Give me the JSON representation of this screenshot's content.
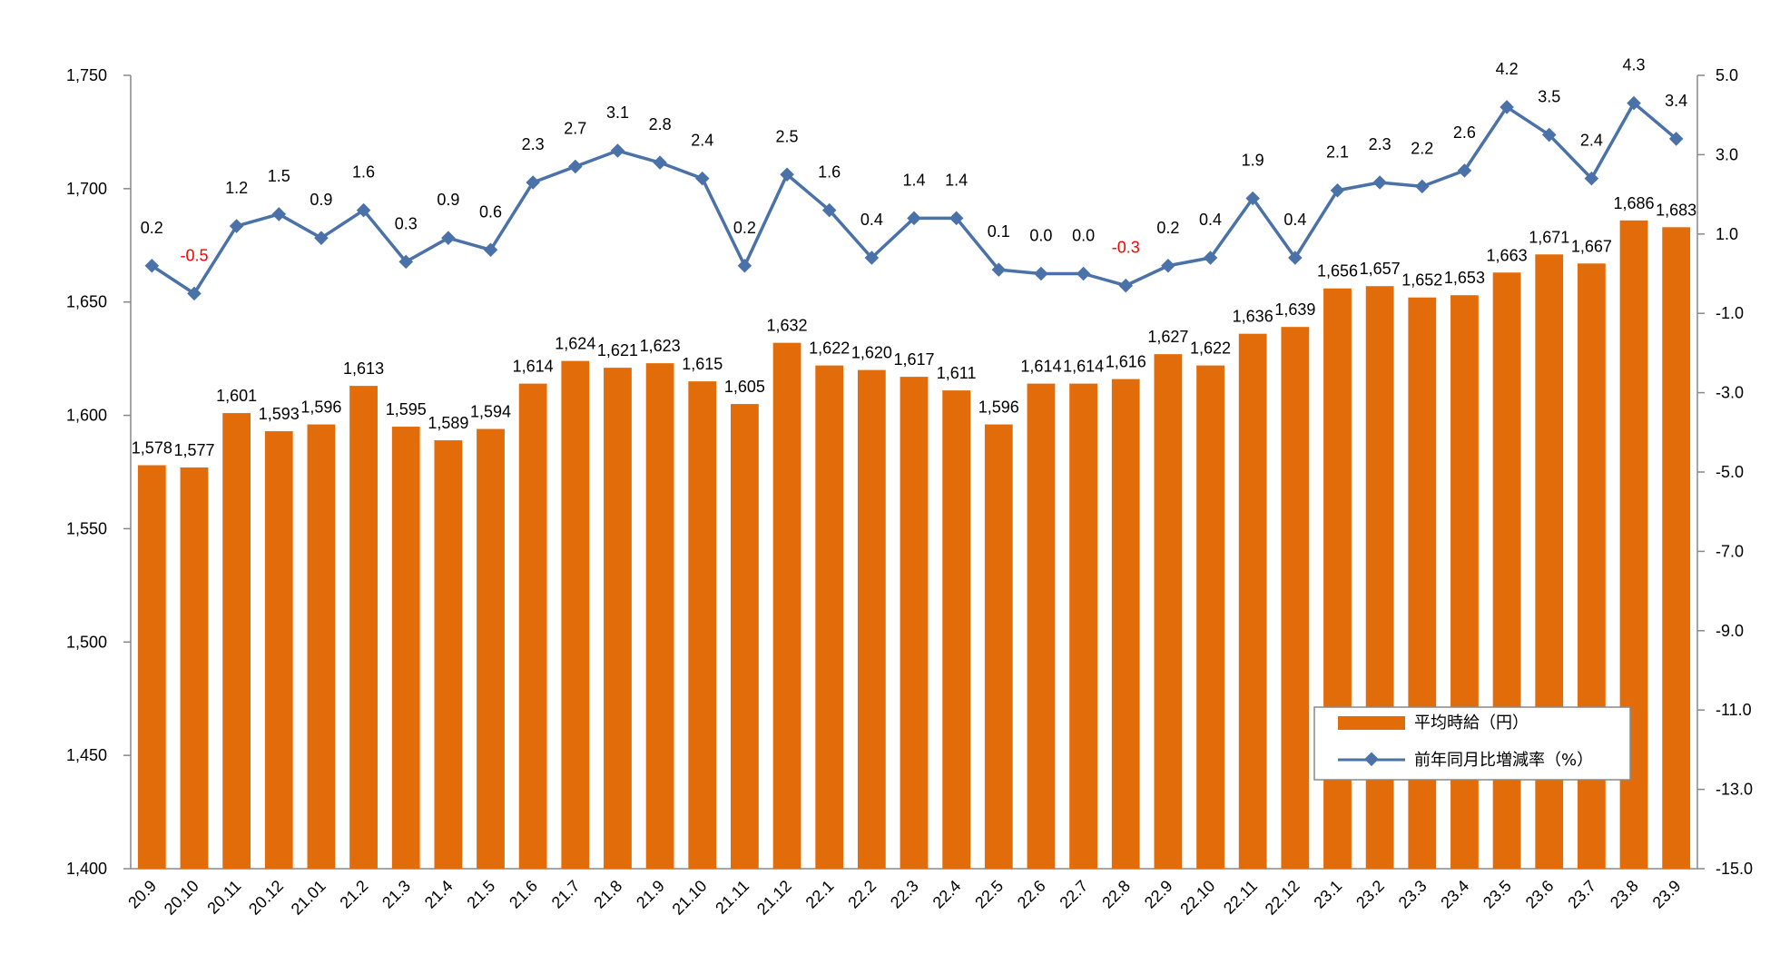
{
  "chart_data": {
    "type": "bar",
    "title": "",
    "categories": [
      "20.9",
      "20.10",
      "20.11",
      "20.12",
      "21.01",
      "21.2",
      "21.3",
      "21.4",
      "21.5",
      "21.6",
      "21.7",
      "21.8",
      "21.9",
      "21.10",
      "21.11",
      "21.12",
      "22.1",
      "22.2",
      "22.3",
      "22.4",
      "22.5",
      "22.6",
      "22.7",
      "22.8",
      "22.9",
      "22.10",
      "22.11",
      "22.12",
      "23.1",
      "23.2",
      "23.3",
      "23.4",
      "23.5",
      "23.6",
      "23.7",
      "23.8",
      "23.9"
    ],
    "series": [
      {
        "name": "平均時給（円）",
        "type": "bar",
        "axis": "left",
        "values": [
          1578,
          1577,
          1601,
          1593,
          1596,
          1613,
          1595,
          1589,
          1594,
          1614,
          1624,
          1621,
          1623,
          1615,
          1605,
          1632,
          1622,
          1620,
          1617,
          1611,
          1596,
          1614,
          1614,
          1616,
          1627,
          1622,
          1636,
          1639,
          1656,
          1657,
          1652,
          1653,
          1663,
          1671,
          1667,
          1686,
          1683
        ],
        "labels": [
          "1,578",
          "1,577",
          "1,601",
          "1,593",
          "1,596",
          "1,613",
          "1,595",
          "1,589",
          "1,594",
          "1,614",
          "1,624",
          "1,621",
          "1,623",
          "1,615",
          "1,605",
          "1,632",
          "1,622",
          "1,620",
          "1,617",
          "1,611",
          "1,596",
          "1,614",
          "1,614",
          "1,616",
          "1,627",
          "1,622",
          "1,636",
          "1,639",
          "1,656",
          "1,657",
          "1,652",
          "1,653",
          "1,663",
          "1,671",
          "1,667",
          "1,686",
          "1,683"
        ]
      },
      {
        "name": "前年同月比増減率（%）",
        "type": "line",
        "axis": "right",
        "values": [
          0.2,
          -0.5,
          1.2,
          1.5,
          0.9,
          1.6,
          0.3,
          0.9,
          0.6,
          2.3,
          2.7,
          3.1,
          2.8,
          2.4,
          0.2,
          2.5,
          1.6,
          0.4,
          1.4,
          1.4,
          0.1,
          0.0,
          0.0,
          -0.3,
          0.2,
          0.4,
          1.9,
          0.4,
          2.1,
          2.3,
          2.2,
          2.6,
          4.2,
          3.5,
          2.4,
          4.3,
          3.4
        ],
        "labels": [
          "0.2",
          "-0.5",
          "1.2",
          "1.5",
          "0.9",
          "1.6",
          "0.3",
          "0.9",
          "0.6",
          "2.3",
          "2.7",
          "3.1",
          "2.8",
          "2.4",
          "0.2",
          "2.5",
          "1.6",
          "0.4",
          "1.4",
          "1.4",
          "0.1",
          "0.0",
          "0.0",
          "-0.3",
          "0.2",
          "0.4",
          "1.9",
          "0.4",
          "2.1",
          "2.3",
          "2.2",
          "2.6",
          "4.2",
          "3.5",
          "2.4",
          "4.3",
          "3.4"
        ]
      }
    ],
    "y_left": {
      "lim": [
        1400,
        1750
      ],
      "ticks": [
        1400,
        1450,
        1500,
        1550,
        1600,
        1650,
        1700,
        1750
      ],
      "tick_labels": [
        "1,400",
        "1,450",
        "1,500",
        "1,550",
        "1,600",
        "1,650",
        "1,700",
        "1,750"
      ]
    },
    "y_right": {
      "lim": [
        -15.0,
        5.0
      ],
      "ticks": [
        -15,
        -13,
        -11,
        -9,
        -7,
        -5,
        -3,
        -1,
        1,
        3,
        5
      ],
      "tick_labels": [
        "-15.0",
        "-13.0",
        "-11.0",
        "-9.0",
        "-7.0",
        "-5.0",
        "-3.0",
        "-1.0",
        "1.0",
        "3.0",
        "5.0"
      ]
    },
    "grid": false,
    "legend": {
      "position": "bottom-right",
      "items": [
        "平均時給（円）",
        "前年同月比増減率（%）"
      ]
    },
    "colors": {
      "bar": "#E36C0A",
      "line": "#4A72A8",
      "negative_label": "#FF0000",
      "axis": "#888888",
      "text": "#000000"
    }
  }
}
